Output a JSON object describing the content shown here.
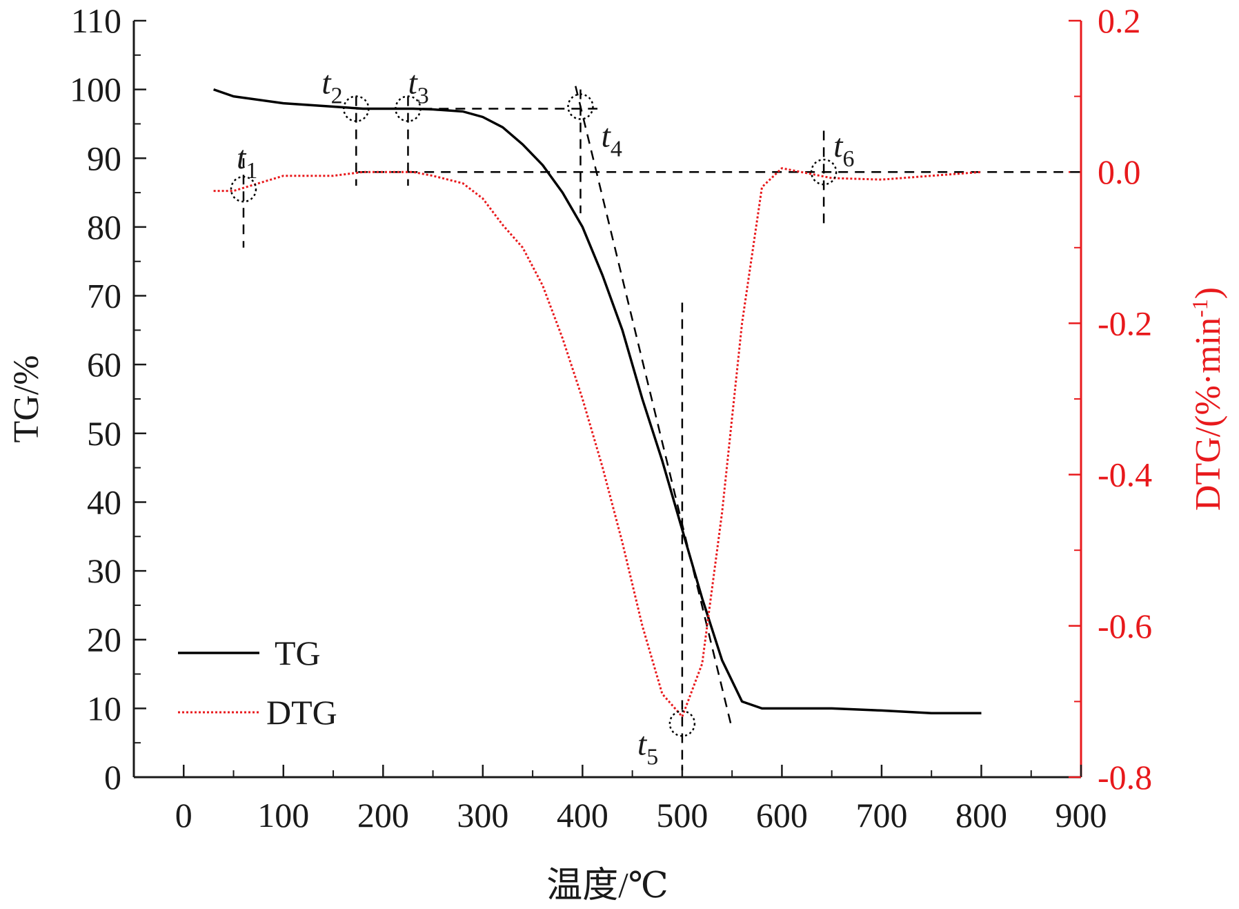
{
  "chart_data": {
    "type": "line",
    "x": [
      30,
      50,
      100,
      150,
      180,
      230,
      250,
      280,
      300,
      320,
      340,
      360,
      380,
      400,
      420,
      440,
      460,
      480,
      500,
      520,
      540,
      560,
      580,
      600,
      650,
      700,
      750,
      800
    ],
    "series": [
      {
        "name": "TG",
        "axis": "left",
        "color": "#000000",
        "style": "solid",
        "values": [
          100,
          99,
          98,
          97.5,
          97.2,
          97.2,
          97.1,
          96.8,
          96,
          94.5,
          92,
          89,
          85,
          80,
          73,
          65,
          55,
          46,
          36,
          26,
          17,
          11,
          10,
          10,
          10,
          9.7,
          9.3,
          9.3
        ]
      },
      {
        "name": "DTG",
        "axis": "right",
        "color": "#e8191c",
        "style": "dotted",
        "values": [
          -0.025,
          -0.025,
          -0.005,
          -0.005,
          0,
          0,
          -0.005,
          -0.015,
          -0.035,
          -0.07,
          -0.1,
          -0.15,
          -0.22,
          -0.3,
          -0.39,
          -0.49,
          -0.6,
          -0.69,
          -0.72,
          -0.65,
          -0.45,
          -0.2,
          -0.02,
          0.005,
          -0.008,
          -0.01,
          -0.005,
          0
        ]
      }
    ],
    "xlabel": "温度/℃",
    "ylabel": "TG/%",
    "y2label_base": "DTG/(%·min",
    "y2label_sup": "-1",
    "y2label_end": ")",
    "xlim": [
      -50,
      900
    ],
    "ylim": [
      0,
      110
    ],
    "y2lim": [
      -0.8,
      0.2
    ],
    "xticks": [
      0,
      100,
      200,
      300,
      400,
      500,
      600,
      700,
      800,
      900
    ],
    "yticks": [
      0,
      10,
      20,
      30,
      40,
      50,
      60,
      70,
      80,
      90,
      100,
      110
    ],
    "y2ticks": [
      -0.8,
      -0.6,
      -0.4,
      -0.2,
      0.0,
      0.2
    ],
    "xtick_labels": [
      "0",
      "100",
      "200",
      "300",
      "400",
      "500",
      "600",
      "700",
      "800",
      "900"
    ],
    "ytick_labels": [
      "0",
      "10",
      "20",
      "30",
      "40",
      "50",
      "60",
      "70",
      "80",
      "90",
      "100",
      "110"
    ],
    "y2tick_labels": [
      "-0.8",
      "-0.6",
      "-0.4",
      "-0.2",
      "0.0",
      "0.2"
    ],
    "legend": {
      "placement": "bottom-left",
      "entries": [
        "TG",
        "DTG"
      ]
    },
    "grid": false,
    "annotations": [
      {
        "label": "t",
        "sub": "1",
        "x": 60,
        "tg": 85.5
      },
      {
        "label": "t",
        "sub": "2",
        "x": 173,
        "tg": 97.2
      },
      {
        "label": "t",
        "sub": "3",
        "x": 225,
        "tg": 97.2
      },
      {
        "label": "t",
        "sub": "4",
        "x": 398,
        "tg": 97.5
      },
      {
        "label": "t",
        "sub": "5",
        "x": 500,
        "tg": 7.8
      },
      {
        "label": "t",
        "sub": "6",
        "x": 642,
        "tg": 88
      }
    ],
    "colors": {
      "left_axis": "#1a1a1a",
      "right_axis": "#e8191c"
    }
  }
}
